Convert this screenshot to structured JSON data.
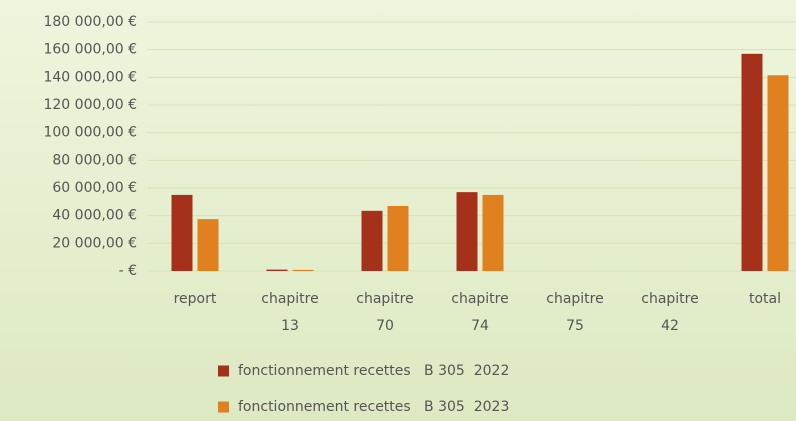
{
  "chart_data": {
    "type": "bar",
    "categories": [
      "report",
      "chapitre 13",
      "chapitre 70",
      "chapitre 74",
      "chapitre 75",
      "chapitre 42",
      "total"
    ],
    "series": [
      {
        "name": "fonctionnement recettes   B 305  2022",
        "color": "#a5311a",
        "values": [
          55000,
          1000,
          43500,
          57000,
          0,
          0,
          157000
        ]
      },
      {
        "name": "fonctionnement recettes   B 305  2023",
        "color": "#e0801e",
        "values": [
          37500,
          800,
          47000,
          55000,
          0,
          0,
          141500
        ]
      }
    ],
    "ylim": [
      0,
      180000
    ],
    "yticks": [
      {
        "value": 0,
        "label": "- €"
      },
      {
        "value": 20000,
        "label": "20 000,00 €"
      },
      {
        "value": 40000,
        "label": "40 000,00 €"
      },
      {
        "value": 60000,
        "label": "60 000,00 €"
      },
      {
        "value": 80000,
        "label": "80 000,00 €"
      },
      {
        "value": 100000,
        "label": "100 000,00 €"
      },
      {
        "value": 120000,
        "label": "120 000,00 €"
      },
      {
        "value": 140000,
        "label": "140 000,00 €"
      },
      {
        "value": 160000,
        "label": "160 000,00 €"
      },
      {
        "value": 180000,
        "label": "180 000,00 €"
      }
    ],
    "grid": true,
    "legend": "bottom"
  }
}
